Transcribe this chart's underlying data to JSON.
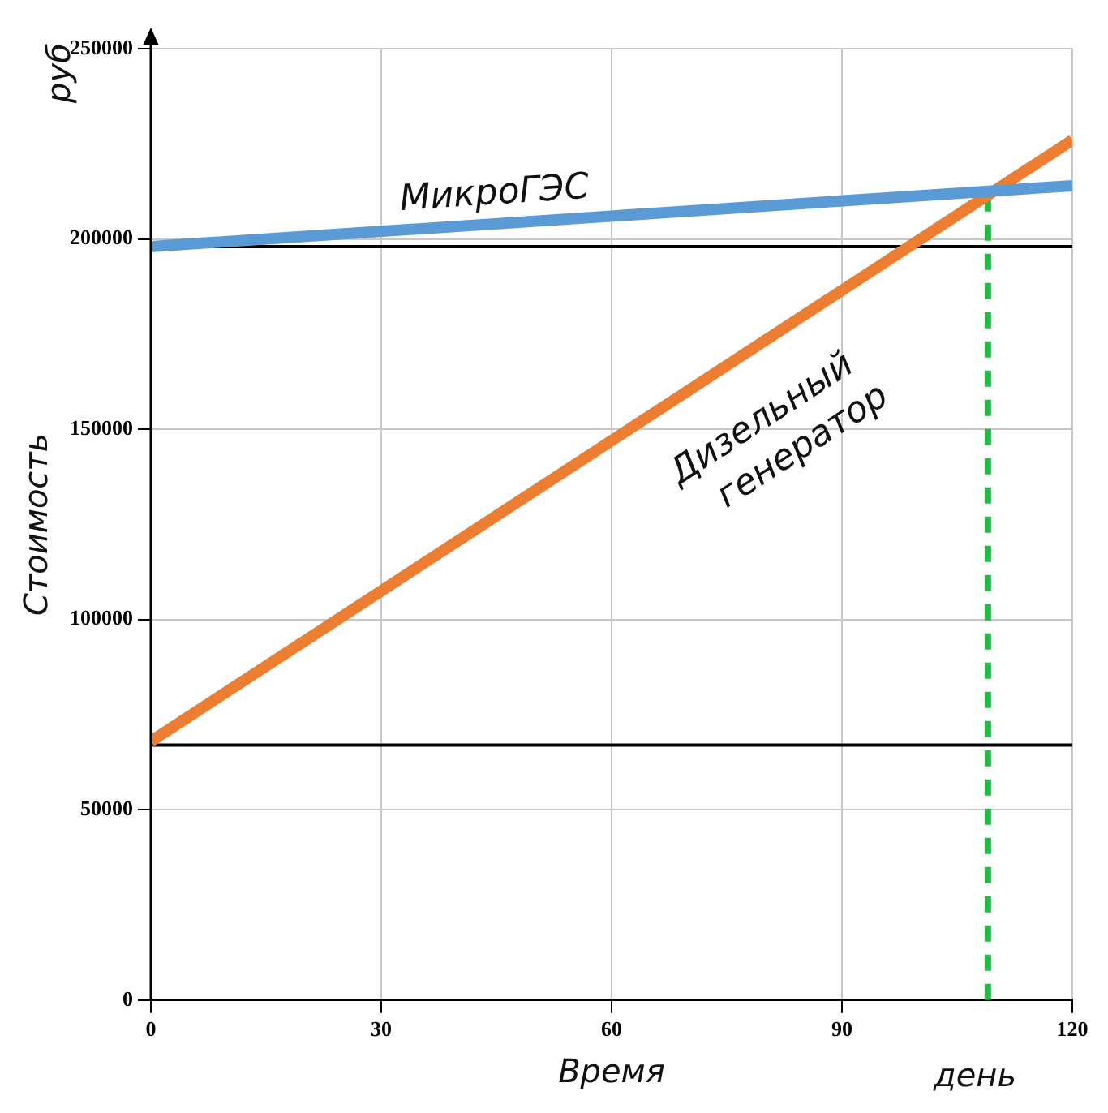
{
  "chart_data": {
    "type": "line",
    "xlabel": "Время",
    "ylabel": "Стоимость",
    "annotations": [
      "руб",
      "день"
    ],
    "x": [
      0,
      120
    ],
    "xlim": [
      0,
      120
    ],
    "xticks": [
      0,
      30,
      60,
      90,
      120
    ],
    "ylim": [
      0,
      250000
    ],
    "yticks": [
      0,
      50000,
      100000,
      150000,
      200000,
      250000
    ],
    "grid": true,
    "legend": false,
    "marker": "none",
    "series": [
      {
        "name": "МикроГЭС",
        "color": "#5b9bd5",
        "values": [
          198000,
          214000
        ]
      },
      {
        "name": "Дизельный генератор",
        "color": "#ed7d31",
        "values": [
          68000,
          226000
        ]
      }
    ],
    "ref_lines": [
      {
        "axis": "y",
        "value": 198000,
        "color": "#000000",
        "line_style": "solid"
      },
      {
        "axis": "y",
        "value": 67000,
        "color": "#000000",
        "line_style": "solid"
      },
      {
        "axis": "x",
        "value": 109,
        "color": "#22bb44",
        "line_style": "dashed"
      }
    ]
  }
}
